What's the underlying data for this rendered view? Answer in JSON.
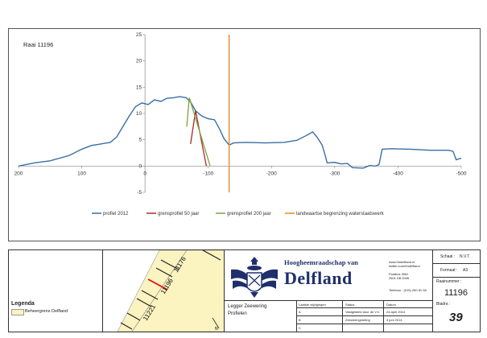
{
  "chart_data": {
    "type": "line",
    "title": "Raai 11196",
    "xlim": [
      200,
      -500
    ],
    "ylim": [
      -5,
      25
    ],
    "x_ticks": [
      200,
      100,
      0,
      -100,
      -200,
      -300,
      -400,
      -500
    ],
    "y_ticks": [
      25,
      20,
      15,
      10,
      5,
      0,
      -5
    ],
    "legend_position": "bottom",
    "series": [
      {
        "name": "profiel 2012",
        "color": "#3a6ea5",
        "points": [
          [
            200,
            0
          ],
          [
            175,
            0.6
          ],
          [
            150,
            1.0
          ],
          [
            120,
            2.0
          ],
          [
            100,
            3.2
          ],
          [
            85,
            3.9
          ],
          [
            70,
            4.2
          ],
          [
            55,
            4.5
          ],
          [
            45,
            5.5
          ],
          [
            35,
            7.5
          ],
          [
            25,
            9.5
          ],
          [
            15,
            11.3
          ],
          [
            5,
            12.0
          ],
          [
            -5,
            11.7
          ],
          [
            -15,
            12.6
          ],
          [
            -25,
            12.3
          ],
          [
            -35,
            12.9
          ],
          [
            -45,
            13.0
          ],
          [
            -55,
            13.2
          ],
          [
            -65,
            13.0
          ],
          [
            -72,
            12.2
          ],
          [
            -80,
            10.5
          ],
          [
            -90,
            9.5
          ],
          [
            -100,
            9.0
          ],
          [
            -110,
            8.8
          ],
          [
            -118,
            7.0
          ],
          [
            -125,
            5.2
          ],
          [
            -133,
            4.0
          ],
          [
            -140,
            4.4
          ],
          [
            -160,
            4.5
          ],
          [
            -190,
            4.4
          ],
          [
            -220,
            4.5
          ],
          [
            -240,
            4.9
          ],
          [
            -255,
            5.8
          ],
          [
            -265,
            6.5
          ],
          [
            -272,
            5.5
          ],
          [
            -280,
            4.0
          ],
          [
            -285,
            2.0
          ],
          [
            -288,
            0.6
          ],
          [
            -300,
            0.7
          ],
          [
            -310,
            0.4
          ],
          [
            -320,
            0.5
          ],
          [
            -328,
            -0.3
          ],
          [
            -345,
            -0.4
          ],
          [
            -355,
            0.1
          ],
          [
            -365,
            0.0
          ],
          [
            -370,
            0.3
          ],
          [
            -375,
            3.2
          ],
          [
            -390,
            3.3
          ],
          [
            -420,
            3.2
          ],
          [
            -450,
            3.0
          ],
          [
            -480,
            3.0
          ],
          [
            -487,
            2.8
          ],
          [
            -492,
            1.2
          ],
          [
            -500,
            1.5
          ]
        ]
      },
      {
        "name": "grensprofiel 50 jaar",
        "color": "#a52a2a",
        "lines": [
          [
            [
              -80,
              10.5
            ],
            [
              -72,
              4.2
            ]
          ],
          [
            [
              -80,
              10.5
            ],
            [
              -97,
              0
            ]
          ]
        ]
      },
      {
        "name": "grensprofiel 200 jaar",
        "color": "#7aa33a",
        "lines": [
          [
            [
              -70,
              13
            ],
            [
              -66,
              7.5
            ]
          ],
          [
            [
              -70,
              13
            ],
            [
              -103,
              0
            ]
          ]
        ]
      },
      {
        "name": "landwaartse begrenzing waterstaatswerk",
        "color": "#e58a2a",
        "vertical_x": -133
      }
    ]
  },
  "legend": {
    "title": "Legenda",
    "item": "Beheergrens Delfland"
  },
  "map": {
    "labels": [
      "11176",
      "11196",
      "11221"
    ],
    "north": "N"
  },
  "brand": {
    "line1": "Hoogheemraadschap van",
    "line2": "Delfland"
  },
  "contact": [
    "www.hhdelfland.nl",
    "twitter.com/hhdelfland",
    "Postbus 3061",
    "2601 DB Delft",
    "Telefoon : (015) 260 81 08"
  ],
  "drawing": {
    "title1": "Legger Zeewering",
    "title2": "Profielen"
  },
  "table": {
    "headers": [
      "Laatste wijzigingen",
      "Status",
      "Datum"
    ],
    "rows": [
      {
        "code": "A",
        "status": "Vastgesteld door de V.V.",
        "date": "24 april 2014"
      },
      {
        "code": "B",
        "status": "Zeeweringmeting",
        "date": "3 juni 2014"
      },
      {
        "code": "C",
        "status": "",
        "date": ""
      }
    ]
  },
  "meta": {
    "schaal_label": "Schaal :",
    "schaal": "N.V.T.",
    "formaat_label": "Formaat :",
    "formaat": "A3",
    "raai_label": "Raainummer :",
    "raai": "11196",
    "blad_label": "Bladnr.:",
    "blad": "39"
  },
  "colors": {
    "brand": "#1f2f6b",
    "beheergrens": "#fbf3c0"
  }
}
